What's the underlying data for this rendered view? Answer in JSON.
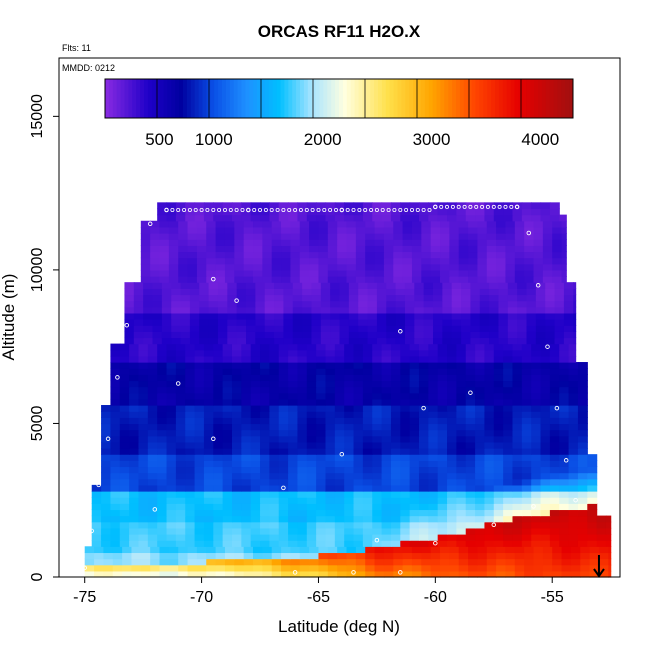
{
  "chart_data": {
    "type": "heatmap",
    "title": "ORCAS RF11 H2O.X",
    "flights_label": "Flts: 11",
    "date_label": "MMDD: 0212",
    "xlabel": "Latitude (deg N)",
    "ylabel": "Altitude (m)",
    "xlim": [
      -76.1,
      -52.1
    ],
    "ylim": [
      0,
      16900
    ],
    "xticks": [
      -75,
      -70,
      -65,
      -60,
      -55
    ],
    "xtick_labels": [
      "-75",
      "-70",
      "-65",
      "-60",
      "-55"
    ],
    "yticks": [
      0,
      5000,
      10000,
      15000
    ],
    "ytick_labels": [
      "0",
      "5000",
      "10000",
      "15000"
    ],
    "colorbar": {
      "range": [
        0,
        4300
      ],
      "ticks": [
        500,
        1000,
        2000,
        3000,
        4000
      ],
      "tick_labels": [
        "500",
        "1000",
        "2000",
        "3000",
        "4000"
      ],
      "stops": [
        {
          "v": 0,
          "color": "#8a2be2"
        },
        {
          "v": 400,
          "color": "#1f00c8"
        },
        {
          "v": 700,
          "color": "#0000a0"
        },
        {
          "v": 1000,
          "color": "#0a50e6"
        },
        {
          "v": 1300,
          "color": "#1e90ff"
        },
        {
          "v": 1600,
          "color": "#00bfff"
        },
        {
          "v": 1900,
          "color": "#a8e4ff"
        },
        {
          "v": 2200,
          "color": "#ffffe0"
        },
        {
          "v": 2600,
          "color": "#ffe04a"
        },
        {
          "v": 3000,
          "color": "#ffa500"
        },
        {
          "v": 3400,
          "color": "#ff4500"
        },
        {
          "v": 3800,
          "color": "#e60000"
        },
        {
          "v": 4300,
          "color": "#a01010"
        }
      ]
    },
    "field_bands": [
      {
        "z_bottom": 8500,
        "z_top": 12200,
        "value": 200
      },
      {
        "z_bottom": 7000,
        "z_top": 8500,
        "value": 380
      },
      {
        "z_bottom": 5500,
        "z_top": 7000,
        "value": 650
      },
      {
        "z_bottom": 4000,
        "z_top": 5500,
        "value": 800
      },
      {
        "z_bottom": 2800,
        "z_top": 4000,
        "value": 950
      },
      {
        "z_bottom": 1800,
        "z_top": 2800,
        "value": 1600
      },
      {
        "z_bottom": 800,
        "z_top": 1800,
        "value": 1700
      },
      {
        "z_bottom": 0,
        "z_top": 800,
        "value": 1850
      }
    ],
    "marine_layer": [
      {
        "lat": -70,
        "z_top": 400,
        "value": 2800
      },
      {
        "lat": -66,
        "z_top": 500,
        "value": 3200
      },
      {
        "lat": -63,
        "z_top": 800,
        "value": 3700
      },
      {
        "lat": -60,
        "z_top": 1200,
        "value": 3900
      },
      {
        "lat": -57,
        "z_top": 1800,
        "value": 4000
      },
      {
        "lat": -53,
        "z_top": 2300,
        "value": 4100
      }
    ],
    "flight_track": [
      {
        "lat": -75.0,
        "z": 300
      },
      {
        "lat": -74.7,
        "z": 1500
      },
      {
        "lat": -74.4,
        "z": 3000
      },
      {
        "lat": -74.0,
        "z": 4500
      },
      {
        "lat": -73.6,
        "z": 6500
      },
      {
        "lat": -73.2,
        "z": 8200
      },
      {
        "lat": -72.8,
        "z": 9800
      },
      {
        "lat": -72.2,
        "z": 11500
      },
      {
        "lat": -71.5,
        "z": 11950
      },
      {
        "lat": -68,
        "z": 11950
      },
      {
        "lat": -64,
        "z": 11950
      },
      {
        "lat": -60,
        "z": 12050
      },
      {
        "lat": -56.5,
        "z": 12050
      },
      {
        "lat": -56,
        "z": 11200
      },
      {
        "lat": -55.6,
        "z": 9500
      },
      {
        "lat": -55.2,
        "z": 7500
      },
      {
        "lat": -54.8,
        "z": 5500
      },
      {
        "lat": -54.4,
        "z": 3800
      },
      {
        "lat": -54.0,
        "z": 2500
      },
      {
        "lat": -66.0,
        "z": 150
      },
      {
        "lat": -63.5,
        "z": 150
      },
      {
        "lat": -61.5,
        "z": 150
      },
      {
        "lat": -69.5,
        "z": 9700
      },
      {
        "lat": -68.5,
        "z": 9000
      },
      {
        "lat": -61.5,
        "z": 8000
      },
      {
        "lat": -60.5,
        "z": 5500
      },
      {
        "lat": -62.5,
        "z": 1200
      },
      {
        "lat": -60.0,
        "z": 1100
      },
      {
        "lat": -57.5,
        "z": 1700
      },
      {
        "lat": -55.8,
        "z": 2300
      },
      {
        "lat": -71.0,
        "z": 6300
      },
      {
        "lat": -69.5,
        "z": 4500
      },
      {
        "lat": -72.0,
        "z": 2200
      },
      {
        "lat": -66.5,
        "z": 2900
      },
      {
        "lat": -64.0,
        "z": 4000
      },
      {
        "lat": -58.5,
        "z": 6000
      }
    ],
    "arrow_lat": -53.0
  }
}
